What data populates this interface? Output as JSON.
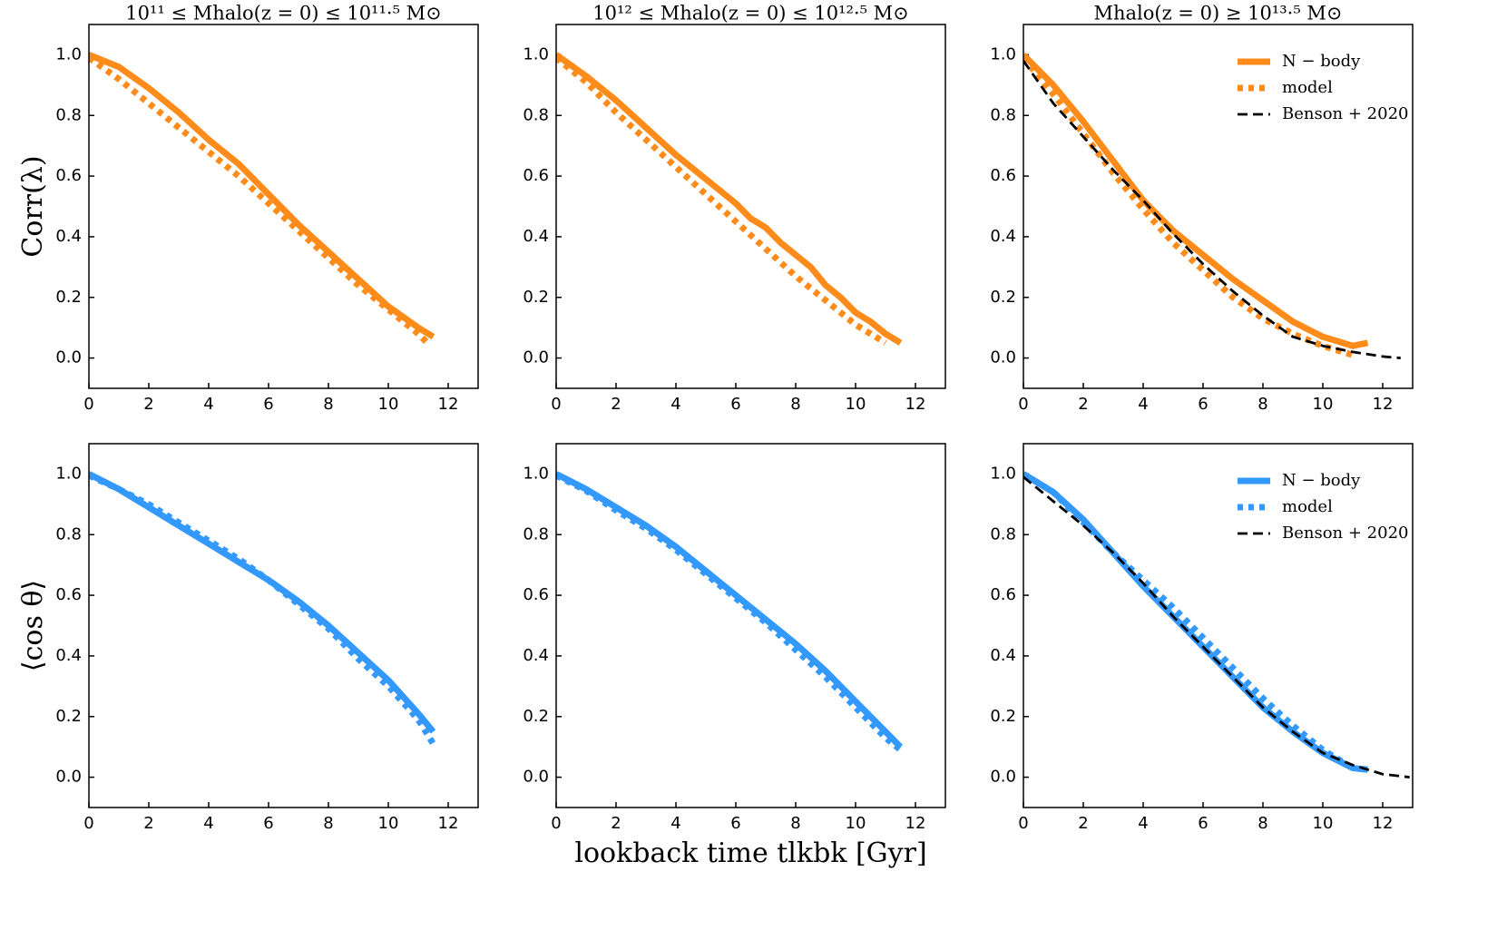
{
  "chart_data": [
    {
      "type": "line",
      "title": "10¹¹ ≤ Mhalo(z = 0) ≤ 10¹¹·⁵ M⊙",
      "ylabel": "Corr(λ)",
      "xlim": [
        0,
        13
      ],
      "ylim": [
        -0.1,
        1.1
      ],
      "xticks": [
        0,
        2,
        4,
        6,
        8,
        10,
        12
      ],
      "yticks": [
        {
          "value": 0,
          "label": "0.0"
        },
        0.2,
        0.4,
        0.6,
        0.8,
        {
          "value": 1,
          "label": "1.0"
        }
      ],
      "series": [
        {
          "name": "N − body",
          "color": "#ff8c1a",
          "linestyle": "solid",
          "x": [
            0,
            1,
            2,
            3,
            4,
            5,
            6,
            7,
            8,
            9,
            10,
            11,
            11.5
          ],
          "values": [
            1.0,
            0.96,
            0.89,
            0.81,
            0.72,
            0.64,
            0.54,
            0.44,
            0.35,
            0.26,
            0.17,
            0.1,
            0.07
          ]
        },
        {
          "name": "model",
          "color": "#ff8c1a",
          "linestyle": "dotted",
          "x": [
            0,
            1,
            2,
            3,
            4,
            5,
            6,
            7,
            8,
            9,
            10,
            11,
            11.3
          ],
          "values": [
            0.99,
            0.92,
            0.84,
            0.76,
            0.68,
            0.6,
            0.51,
            0.42,
            0.33,
            0.24,
            0.16,
            0.08,
            0.05
          ]
        }
      ]
    },
    {
      "type": "line",
      "title": "10¹² ≤ Mhalo(z = 0) ≤ 10¹²·⁵ M⊙",
      "xlim": [
        0,
        13
      ],
      "ylim": [
        -0.1,
        1.1
      ],
      "xticks": [
        0,
        2,
        4,
        6,
        8,
        10,
        12
      ],
      "yticks": [
        {
          "value": 0,
          "label": "0.0"
        },
        0.2,
        0.4,
        0.6,
        0.8,
        {
          "value": 1,
          "label": "1.0"
        }
      ],
      "series": [
        {
          "name": "N − body",
          "color": "#ff8c1a",
          "linestyle": "solid",
          "x": [
            0,
            1,
            2,
            3,
            4,
            5,
            6,
            6.5,
            7,
            7.5,
            8,
            8.5,
            9,
            9.5,
            10,
            10.5,
            11,
            11.5
          ],
          "values": [
            1.0,
            0.93,
            0.85,
            0.76,
            0.67,
            0.59,
            0.51,
            0.46,
            0.43,
            0.38,
            0.34,
            0.3,
            0.24,
            0.2,
            0.15,
            0.12,
            0.08,
            0.05
          ]
        },
        {
          "name": "model",
          "color": "#ff8c1a",
          "linestyle": "dotted",
          "x": [
            0,
            1,
            2,
            3,
            4,
            5,
            6,
            7,
            8,
            9,
            10,
            11
          ],
          "values": [
            0.99,
            0.91,
            0.81,
            0.72,
            0.63,
            0.54,
            0.45,
            0.36,
            0.27,
            0.19,
            0.11,
            0.05
          ]
        }
      ]
    },
    {
      "type": "line",
      "title": "Mhalo(z = 0) ≥ 10¹³·⁵ M⊙",
      "legend": "upper right",
      "xlim": [
        0,
        13
      ],
      "ylim": [
        -0.1,
        1.1
      ],
      "xticks": [
        0,
        2,
        4,
        6,
        8,
        10,
        12
      ],
      "yticks": [
        {
          "value": 0,
          "label": "0.0"
        },
        0.2,
        0.4,
        0.6,
        0.8,
        {
          "value": 1,
          "label": "1.0"
        }
      ],
      "series": [
        {
          "name": "N − body",
          "color": "#ff8c1a",
          "linestyle": "solid",
          "x": [
            0,
            1,
            2,
            3,
            4,
            5,
            6,
            7,
            8,
            9,
            10,
            11,
            11.5
          ],
          "values": [
            1.0,
            0.9,
            0.78,
            0.65,
            0.52,
            0.42,
            0.34,
            0.26,
            0.19,
            0.12,
            0.07,
            0.04,
            0.05
          ]
        },
        {
          "name": "model",
          "color": "#ff8c1a",
          "linestyle": "dotted",
          "x": [
            0,
            1,
            2,
            3,
            4,
            5,
            6,
            7,
            8,
            9,
            10,
            11
          ],
          "values": [
            0.99,
            0.87,
            0.74,
            0.61,
            0.49,
            0.38,
            0.29,
            0.2,
            0.13,
            0.08,
            0.04,
            0.01
          ]
        },
        {
          "name": "Benson + 2020",
          "color": "#000000",
          "linestyle": "dashed",
          "x": [
            0,
            1,
            2,
            3,
            4,
            5,
            6,
            7,
            8,
            9,
            10,
            11,
            12,
            12.6
          ],
          "values": [
            0.98,
            0.84,
            0.73,
            0.62,
            0.52,
            0.41,
            0.31,
            0.22,
            0.14,
            0.07,
            0.04,
            0.02,
            0.005,
            0.0
          ]
        }
      ]
    },
    {
      "type": "line",
      "ylabel": "⟨cos θ⟩",
      "xlim": [
        0,
        13
      ],
      "ylim": [
        -0.1,
        1.1
      ],
      "xticks": [
        0,
        2,
        4,
        6,
        8,
        10,
        12
      ],
      "yticks": [
        {
          "value": 0,
          "label": "0.0"
        },
        0.2,
        0.4,
        0.6,
        0.8,
        {
          "value": 1,
          "label": "1.0"
        }
      ],
      "series": [
        {
          "name": "N − body",
          "color": "#3399ff",
          "linestyle": "solid",
          "x": [
            0,
            1,
            2,
            3,
            4,
            5,
            6,
            7,
            8,
            9,
            10,
            11,
            11.5
          ],
          "values": [
            1.0,
            0.95,
            0.89,
            0.83,
            0.77,
            0.71,
            0.65,
            0.58,
            0.5,
            0.41,
            0.32,
            0.21,
            0.15
          ]
        },
        {
          "name": "model",
          "color": "#3399ff",
          "linestyle": "dotted",
          "x": [
            0,
            1,
            2,
            3,
            4,
            5,
            6,
            7,
            8,
            9,
            10,
            11,
            11.5
          ],
          "values": [
            0.995,
            0.95,
            0.9,
            0.84,
            0.78,
            0.72,
            0.65,
            0.57,
            0.49,
            0.39,
            0.3,
            0.19,
            0.11
          ]
        }
      ]
    },
    {
      "type": "line",
      "xlabel": "lookback time tlkbk [Gyr]",
      "xlim": [
        0,
        13
      ],
      "ylim": [
        -0.1,
        1.1
      ],
      "xticks": [
        0,
        2,
        4,
        6,
        8,
        10,
        12
      ],
      "yticks": [
        {
          "value": 0,
          "label": "0.0"
        },
        0.2,
        0.4,
        0.6,
        0.8,
        {
          "value": 1,
          "label": "1.0"
        }
      ],
      "series": [
        {
          "name": "N − body",
          "color": "#3399ff",
          "linestyle": "solid",
          "x": [
            0,
            1,
            2,
            3,
            4,
            5,
            6,
            7,
            8,
            9,
            10,
            11,
            11.5
          ],
          "values": [
            1.0,
            0.95,
            0.89,
            0.83,
            0.76,
            0.68,
            0.6,
            0.52,
            0.44,
            0.35,
            0.25,
            0.15,
            0.1
          ]
        },
        {
          "name": "model",
          "color": "#3399ff",
          "linestyle": "dotted",
          "x": [
            0,
            1,
            2,
            3,
            4,
            5,
            6,
            7,
            8,
            9,
            10,
            11,
            11.5
          ],
          "values": [
            0.995,
            0.945,
            0.88,
            0.82,
            0.75,
            0.67,
            0.59,
            0.51,
            0.42,
            0.33,
            0.23,
            0.13,
            0.09
          ]
        }
      ]
    },
    {
      "type": "line",
      "legend": "upper right",
      "xlim": [
        0,
        13
      ],
      "ylim": [
        -0.1,
        1.1
      ],
      "xticks": [
        0,
        2,
        4,
        6,
        8,
        10,
        12
      ],
      "yticks": [
        {
          "value": 0,
          "label": "0.0"
        },
        0.2,
        0.4,
        0.6,
        0.8,
        {
          "value": 1,
          "label": "1.0"
        }
      ],
      "series": [
        {
          "name": "N − body",
          "color": "#3399ff",
          "linestyle": "solid",
          "x": [
            0,
            1,
            2,
            3,
            4,
            5,
            6,
            7,
            8,
            9,
            10,
            11,
            11.5
          ],
          "values": [
            1.0,
            0.94,
            0.85,
            0.74,
            0.63,
            0.53,
            0.43,
            0.33,
            0.23,
            0.15,
            0.08,
            0.03,
            0.025
          ]
        },
        {
          "name": "model",
          "color": "#3399ff",
          "linestyle": "dotted",
          "x": [
            0,
            1,
            2,
            3,
            4,
            5,
            6,
            7,
            8,
            9,
            10,
            11
          ],
          "values": [
            1.0,
            0.94,
            0.84,
            0.74,
            0.65,
            0.56,
            0.46,
            0.36,
            0.26,
            0.17,
            0.09,
            0.03
          ]
        },
        {
          "name": "Benson + 2020",
          "color": "#000000",
          "linestyle": "dashed",
          "x": [
            0,
            1,
            2,
            3,
            4,
            5,
            6,
            7,
            8,
            9,
            10,
            11,
            12,
            12.9
          ],
          "values": [
            0.99,
            0.91,
            0.83,
            0.74,
            0.64,
            0.53,
            0.43,
            0.33,
            0.23,
            0.15,
            0.08,
            0.04,
            0.01,
            0.0
          ]
        }
      ]
    }
  ]
}
